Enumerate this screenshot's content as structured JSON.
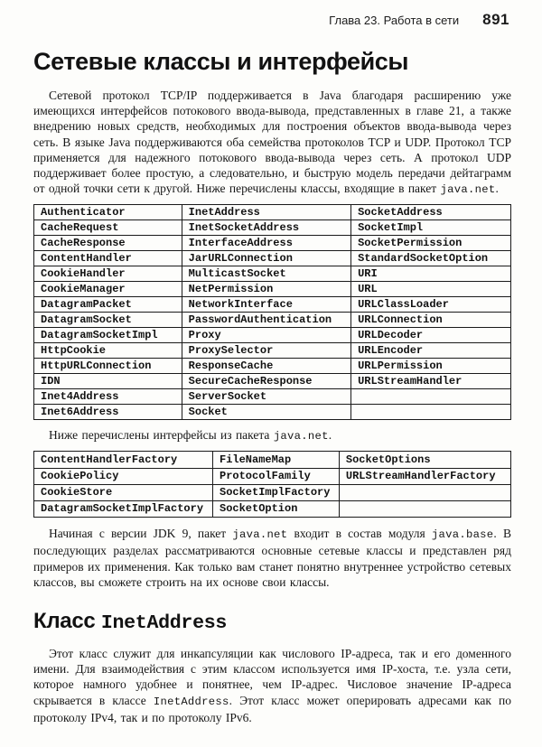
{
  "colors": {
    "ink": "#161616",
    "paper": "#fdfdfb"
  },
  "header": {
    "chapter": "Глава 23. Работа в сети",
    "page_number": "891"
  },
  "section": {
    "title": "Сетевые классы и интерфейсы"
  },
  "subsection": {
    "title_parts": [
      {
        "text": "Класс "
      },
      {
        "text": "InetAddress",
        "code": true
      }
    ]
  },
  "paragraphs": {
    "intro": [
      {
        "text": "Сетевой протокол TCP/IP поддерживается в Java благодаря расширению уже имеющихся интерфейсов потокового ввода-вывода, представленных в главе 21, а также внедрению новых средств, необходимых для построения объектов ввода-вывода через сеть. В языке Java поддерживаются оба семейства протоколов TCP и UDP. Протокол TCP применяется для надежного потокового ввода-вывода через сеть. А протокол UDP поддерживает более простую, а следовательно, и быструю модель передачи дейтаграмм от одной точки сети к другой. Ниже перечислены классы, входящие в пакет "
      },
      {
        "text": "java.net",
        "code": true
      },
      {
        "text": "."
      }
    ],
    "interfaces_note": [
      {
        "text": "Ниже перечислены интерфейсы из пакета "
      },
      {
        "text": "java.net",
        "code": true
      },
      {
        "text": "."
      }
    ],
    "jdk9": [
      {
        "text": "Начиная с версии JDK 9, пакет "
      },
      {
        "text": "java.net",
        "code": true
      },
      {
        "text": " входит в состав модуля "
      },
      {
        "text": "java.base",
        "code": true
      },
      {
        "text": ". В последующих разделах рассматриваются основные сетевые классы и представлен ряд примеров их применения. Как только вам станет понятно внутреннее устройство сетевых классов, вы сможете строить на их основе свои классы."
      }
    ],
    "inetaddress": [
      {
        "text": "Этот класс служит для инкапсуляции как числового IP-адреса, так и его доменного имени. Для взаимодействия с этим классом используется имя IP-хоста, т.е. узла сети, которое намного удобнее и понятнее, чем IP-адрес. Числовое значение IP-адреса скрывается в классе "
      },
      {
        "text": "InetAddress",
        "code": true
      },
      {
        "text": ". Этот класс может оперировать адресами как по протоколу IPv4, так и по протоколу IPv6."
      }
    ]
  },
  "classes_table": {
    "rows": [
      [
        "Authenticator",
        "InetAddress",
        "SocketAddress"
      ],
      [
        "CacheRequest",
        "InetSocketAddress",
        "SocketImpl"
      ],
      [
        "CacheResponse",
        "InterfaceAddress",
        "SocketPermission"
      ],
      [
        "ContentHandler",
        "JarURLConnection",
        "StandardSocketOption"
      ],
      [
        "CookieHandler",
        "MulticastSocket",
        "URI"
      ],
      [
        "CookieManager",
        "NetPermission",
        "URL"
      ],
      [
        "DatagramPacket",
        "NetworkInterface",
        "URLClassLoader"
      ],
      [
        "DatagramSocket",
        "PasswordAuthentication",
        "URLConnection"
      ],
      [
        "DatagramSocketImpl",
        "Proxy",
        "URLDecoder"
      ],
      [
        "HttpCookie",
        "ProxySelector",
        "URLEncoder"
      ],
      [
        "HttpURLConnection",
        "ResponseCache",
        "URLPermission"
      ],
      [
        "IDN",
        "SecureCacheResponse",
        "URLStreamHandler"
      ],
      [
        "Inet4Address",
        "ServerSocket",
        ""
      ],
      [
        "Inet6Address",
        "Socket",
        ""
      ]
    ]
  },
  "interfaces_table": {
    "rows": [
      [
        "ContentHandlerFactory",
        "FileNameMap",
        "SocketOptions"
      ],
      [
        "CookiePolicy",
        "ProtocolFamily",
        "URLStreamHandlerFactory"
      ],
      [
        "CookieStore",
        "SocketImplFactory",
        ""
      ],
      [
        "DatagramSocketImplFactory",
        "SocketOption",
        ""
      ]
    ]
  }
}
